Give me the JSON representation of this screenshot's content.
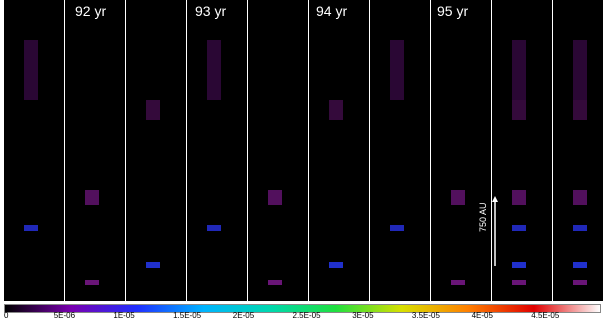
{
  "year_labels": [
    "92 yr",
    "93 yr",
    "94 yr",
    "95 yr"
  ],
  "scale_bar_label": "750 AU",
  "colorbar": {
    "ticks": [
      "0",
      "5E-06",
      "1E-05",
      "1.5E-05",
      "2E-05",
      "2.5E-05",
      "3E-05",
      "3.5E-05",
      "4E-05",
      "4.5E-05"
    ],
    "gradient": [
      "#000000",
      "#7a00b0",
      "#2030ff",
      "#00b4ff",
      "#00d8b0",
      "#20e040",
      "#d8e000",
      "#ff8000",
      "#e00000",
      "#ffffff"
    ]
  }
}
